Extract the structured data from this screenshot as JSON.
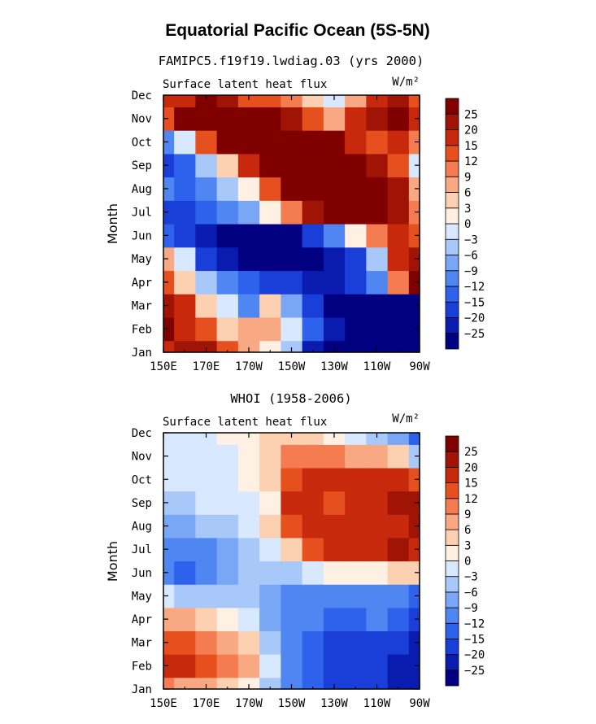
{
  "figure": {
    "title": "Equatorial Pacific Ocean (5S-5N)",
    "units_label": "W/m²"
  },
  "chart_data": [
    {
      "type": "heatmap",
      "subtitle": "FAMIPC5.f19f19.lwdiag.03 (yrs 2000)",
      "panel_label": "Surface latent heat flux",
      "units": "W/m²",
      "xlabel": "",
      "ylabel": "Month",
      "x_ticks": [
        "150E",
        "170E",
        "170W",
        "150W",
        "130W",
        "110W",
        "90W"
      ],
      "y_ticks": [
        "Jan",
        "Feb",
        "Mar",
        "Apr",
        "May",
        "Jun",
        "Jul",
        "Aug",
        "Sep",
        "Oct",
        "Nov",
        "Dec"
      ],
      "x": [
        "150E",
        "160E",
        "170E",
        "180",
        "170W",
        "160W",
        "150W",
        "140W",
        "130W",
        "120W",
        "110W",
        "100W",
        "90W"
      ],
      "y": [
        "Jan",
        "Feb",
        "Mar",
        "Apr",
        "May",
        "Jun",
        "Jul",
        "Aug",
        "Sep",
        "Oct",
        "Nov",
        "Dec"
      ],
      "z": [
        [
          18,
          22,
          20,
          12,
          6,
          0,
          -6,
          -25,
          -30,
          -30,
          -30,
          -30,
          -30
        ],
        [
          25,
          18,
          12,
          3,
          8,
          6,
          -3,
          -15,
          -25,
          -30,
          -30,
          -30,
          -30
        ],
        [
          22,
          15,
          5,
          -3,
          -10,
          3,
          -9,
          -20,
          -28,
          -30,
          -30,
          -30,
          -30
        ],
        [
          12,
          3,
          -6,
          -12,
          -15,
          -18,
          -20,
          -22,
          -25,
          -20,
          -12,
          9,
          25
        ],
        [
          6,
          -3,
          -18,
          -25,
          -28,
          -28,
          -28,
          -27,
          -25,
          -18,
          -6,
          15,
          20
        ],
        [
          -15,
          -20,
          -25,
          -27,
          -28,
          -28,
          -27,
          -20,
          -10,
          0,
          9,
          18,
          12
        ],
        [
          -18,
          -18,
          -15,
          -12,
          -8,
          0,
          10,
          22,
          26,
          28,
          28,
          20,
          9
        ],
        [
          -12,
          -15,
          -12,
          -6,
          0,
          12,
          25,
          28,
          28,
          28,
          28,
          20,
          6
        ],
        [
          -20,
          -15,
          -5,
          5,
          18,
          28,
          28,
          28,
          28,
          28,
          22,
          12,
          -3
        ],
        [
          -12,
          -3,
          12,
          26,
          28,
          28,
          28,
          28,
          25,
          15,
          12,
          15,
          9
        ],
        [
          12,
          25,
          28,
          28,
          28,
          28,
          22,
          12,
          6,
          15,
          20,
          25,
          18
        ],
        [
          15,
          18,
          28,
          22,
          12,
          12,
          9,
          3,
          -3,
          6,
          18,
          22,
          12
        ]
      ],
      "colorbar_levels": [
        -25,
        -20,
        -15,
        -12,
        -9,
        -6,
        -3,
        0,
        3,
        6,
        9,
        12,
        15,
        20,
        25
      ]
    },
    {
      "type": "heatmap",
      "subtitle": "WHOI (1958-2006)",
      "panel_label": "Surface latent heat flux",
      "units": "W/m²",
      "xlabel": "",
      "ylabel": "Month",
      "x_ticks": [
        "150E",
        "170E",
        "170W",
        "150W",
        "130W",
        "110W",
        "90W"
      ],
      "y_ticks": [
        "Jan",
        "Feb",
        "Mar",
        "Apr",
        "May",
        "Jun",
        "Jul",
        "Aug",
        "Sep",
        "Oct",
        "Nov",
        "Dec"
      ],
      "x": [
        "150E",
        "160E",
        "170E",
        "180",
        "170W",
        "160W",
        "150W",
        "140W",
        "130W",
        "120W",
        "110W",
        "100W",
        "90W"
      ],
      "y": [
        "Jan",
        "Feb",
        "Mar",
        "Apr",
        "May",
        "Jun",
        "Jul",
        "Aug",
        "Sep",
        "Oct",
        "Nov",
        "Dec"
      ],
      "z": [
        [
          9,
          6,
          6,
          3,
          0,
          -6,
          -12,
          -15,
          -20,
          -20,
          -20,
          -22,
          -25
        ],
        [
          15,
          18,
          14,
          9,
          6,
          -3,
          -12,
          -15,
          -20,
          -20,
          -20,
          -22,
          -22
        ],
        [
          12,
          12,
          10,
          6,
          3,
          -6,
          -12,
          -15,
          -18,
          -18,
          -18,
          -20,
          -22
        ],
        [
          6,
          6,
          3,
          0,
          -3,
          -9,
          -12,
          -12,
          -15,
          -15,
          -12,
          -15,
          -18
        ],
        [
          -3,
          -6,
          -6,
          -6,
          -6,
          -9,
          -12,
          -12,
          -12,
          -12,
          -12,
          -12,
          -15
        ],
        [
          -12,
          -15,
          -12,
          -9,
          -6,
          -6,
          -6,
          -3,
          0,
          0,
          0,
          3,
          3
        ],
        [
          -12,
          -12,
          -12,
          -9,
          -6,
          -3,
          3,
          12,
          15,
          15,
          18,
          20,
          18
        ],
        [
          -9,
          -9,
          -6,
          -6,
          -3,
          3,
          12,
          18,
          18,
          18,
          15,
          18,
          20
        ],
        [
          -6,
          -6,
          -3,
          -3,
          -3,
          0,
          15,
          15,
          12,
          15,
          18,
          20,
          22
        ],
        [
          -3,
          -3,
          -3,
          -3,
          0,
          3,
          12,
          15,
          15,
          15,
          15,
          15,
          12
        ],
        [
          -3,
          -3,
          -3,
          -3,
          0,
          3,
          9,
          9,
          9,
          6,
          6,
          3,
          -6
        ],
        [
          -3,
          -3,
          -3,
          0,
          0,
          3,
          3,
          3,
          0,
          -3,
          -6,
          -9,
          -15
        ]
      ],
      "colorbar_levels": [
        -25,
        -20,
        -15,
        -12,
        -9,
        -6,
        -3,
        0,
        3,
        6,
        9,
        12,
        15,
        20,
        25
      ]
    }
  ],
  "colors": {
    "palette": [
      "#000080",
      "#0a1cb0",
      "#1a3ed8",
      "#2e62ec",
      "#4f86f2",
      "#7aa6f6",
      "#a9c8fa",
      "#d8e8fe",
      "#fff0e4",
      "#fcd0b0",
      "#f9a884",
      "#f57c50",
      "#e6501e",
      "#c8290c",
      "#a01405",
      "#800000"
    ]
  }
}
